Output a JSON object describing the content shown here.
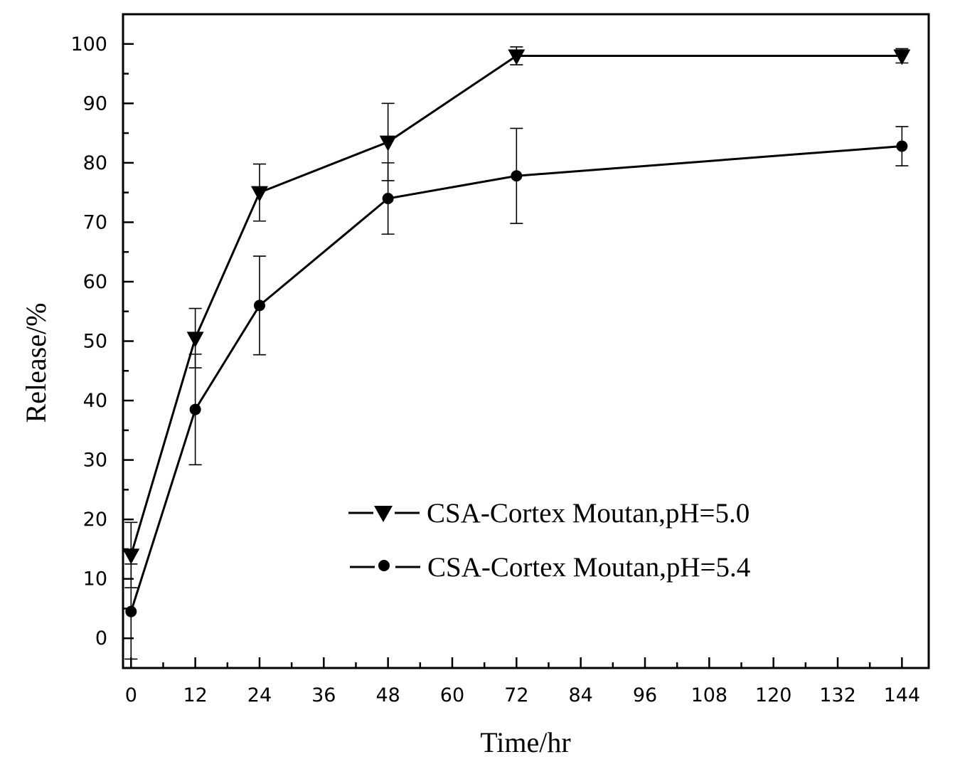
{
  "chart_data": {
    "type": "line",
    "title": "",
    "xlabel": "Time/hr",
    "ylabel": "Release/%",
    "xlim": [
      -1.5,
      149
    ],
    "ylim": [
      -5,
      105
    ],
    "xticks": [
      0,
      12,
      24,
      36,
      48,
      60,
      72,
      84,
      96,
      108,
      120,
      132,
      144
    ],
    "yticks": [
      0,
      10,
      20,
      30,
      40,
      50,
      60,
      70,
      80,
      90,
      100
    ],
    "x_tick_labels": [
      "0",
      "12",
      "24",
      "36",
      "48",
      "60",
      "72",
      "84",
      "96",
      "108",
      "120",
      "132",
      "144"
    ],
    "y_tick_labels": [
      "0",
      "10",
      "20",
      "30",
      "40",
      "50",
      "60",
      "70",
      "80",
      "90",
      "100"
    ],
    "legend_position": "center-right",
    "grid": false,
    "series": [
      {
        "name": "CSA-Cortex Moutan,pH=5.0",
        "marker": "triangle-down",
        "x": [
          0,
          12,
          24,
          48,
          72,
          144
        ],
        "values": [
          14,
          50.5,
          75,
          83.5,
          98,
          98
        ],
        "error": [
          5.5,
          5,
          4.8,
          6.5,
          1.5,
          1.2
        ]
      },
      {
        "name": "CSA-Cortex Moutan,pH=5.4",
        "marker": "circle",
        "x": [
          0,
          12,
          24,
          48,
          72,
          144
        ],
        "values": [
          4.5,
          38.5,
          56,
          74,
          77.8,
          82.8
        ],
        "error": [
          8,
          9.3,
          8.3,
          6,
          8,
          3.3
        ]
      }
    ]
  }
}
